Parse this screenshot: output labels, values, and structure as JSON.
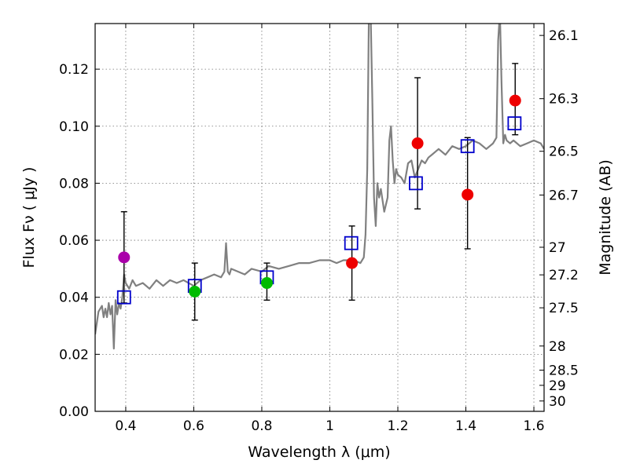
{
  "chart_data": {
    "type": "scatter",
    "xlabel": "Wavelength  λ (μm)",
    "ylabel": "Flux  Fν  ( μJy )",
    "ylabel_right": "Magnitude (AB)",
    "xlim": [
      0.31,
      1.63
    ],
    "ylim": [
      0.0,
      0.136
    ],
    "x_ticks": [
      {
        "value": 0.4,
        "label": "0.4"
      },
      {
        "value": 0.6,
        "label": "0.6"
      },
      {
        "value": 0.8,
        "label": "0.8"
      },
      {
        "value": 1.0,
        "label": "1"
      },
      {
        "value": 1.2,
        "label": "1.2"
      },
      {
        "value": 1.4,
        "label": "1.4"
      },
      {
        "value": 1.6,
        "label": "1.6"
      }
    ],
    "y_ticks": [
      {
        "value": 0.0,
        "label": "0.00"
      },
      {
        "value": 0.02,
        "label": "0.02"
      },
      {
        "value": 0.04,
        "label": "0.04"
      },
      {
        "value": 0.06,
        "label": "0.06"
      },
      {
        "value": 0.08,
        "label": "0.08"
      },
      {
        "value": 0.1,
        "label": "0.10"
      },
      {
        "value": 0.12,
        "label": "0.12"
      }
    ],
    "mag_ticks": [
      {
        "mag": 26.1,
        "label": "26.1"
      },
      {
        "mag": 26.3,
        "label": "26.3"
      },
      {
        "mag": 26.5,
        "label": "26.5"
      },
      {
        "mag": 26.7,
        "label": "26.7"
      },
      {
        "mag": 27.0,
        "label": "27"
      },
      {
        "mag": 27.2,
        "label": "27.2"
      },
      {
        "mag": 27.5,
        "label": "27.5"
      },
      {
        "mag": 28.0,
        "label": "28"
      },
      {
        "mag": 28.5,
        "label": "28.5"
      },
      {
        "mag": 29.0,
        "label": "29"
      },
      {
        "mag": 30.0,
        "label": "30"
      }
    ],
    "grid": true,
    "series": [
      {
        "name": "model spectrum",
        "kind": "line",
        "color": "#808080",
        "x": [
          0.31,
          0.32,
          0.33,
          0.335,
          0.34,
          0.345,
          0.35,
          0.355,
          0.36,
          0.365,
          0.37,
          0.375,
          0.38,
          0.385,
          0.39,
          0.395,
          0.4,
          0.41,
          0.42,
          0.43,
          0.45,
          0.47,
          0.49,
          0.51,
          0.53,
          0.55,
          0.57,
          0.6,
          0.62,
          0.64,
          0.66,
          0.68,
          0.69,
          0.695,
          0.7,
          0.705,
          0.71,
          0.73,
          0.75,
          0.77,
          0.8,
          0.82,
          0.85,
          0.88,
          0.91,
          0.94,
          0.97,
          1.0,
          1.02,
          1.04,
          1.07,
          1.09,
          1.1,
          1.105,
          1.11,
          1.115,
          1.12,
          1.125,
          1.13,
          1.135,
          1.14,
          1.145,
          1.15,
          1.16,
          1.17,
          1.175,
          1.18,
          1.185,
          1.19,
          1.195,
          1.2,
          1.21,
          1.22,
          1.23,
          1.24,
          1.25,
          1.26,
          1.27,
          1.28,
          1.29,
          1.3,
          1.32,
          1.34,
          1.36,
          1.38,
          1.4,
          1.42,
          1.44,
          1.46,
          1.48,
          1.49,
          1.495,
          1.5,
          1.505,
          1.51,
          1.515,
          1.52,
          1.53,
          1.54,
          1.56,
          1.58,
          1.6,
          1.62,
          1.63
        ],
        "y": [
          0.027,
          0.035,
          0.037,
          0.033,
          0.036,
          0.033,
          0.038,
          0.034,
          0.037,
          0.022,
          0.039,
          0.034,
          0.038,
          0.036,
          0.04,
          0.048,
          0.045,
          0.043,
          0.046,
          0.044,
          0.045,
          0.043,
          0.046,
          0.044,
          0.046,
          0.045,
          0.046,
          0.044,
          0.046,
          0.047,
          0.048,
          0.047,
          0.049,
          0.059,
          0.049,
          0.048,
          0.05,
          0.049,
          0.048,
          0.05,
          0.049,
          0.051,
          0.05,
          0.051,
          0.052,
          0.052,
          0.053,
          0.053,
          0.052,
          0.053,
          0.053,
          0.052,
          0.054,
          0.062,
          0.085,
          0.14,
          0.14,
          0.11,
          0.075,
          0.065,
          0.08,
          0.075,
          0.078,
          0.07,
          0.075,
          0.095,
          0.1,
          0.088,
          0.08,
          0.085,
          0.083,
          0.082,
          0.08,
          0.087,
          0.088,
          0.082,
          0.085,
          0.088,
          0.087,
          0.089,
          0.09,
          0.092,
          0.09,
          0.093,
          0.092,
          0.093,
          0.095,
          0.094,
          0.092,
          0.094,
          0.096,
          0.13,
          0.14,
          0.115,
          0.094,
          0.097,
          0.095,
          0.094,
          0.095,
          0.093,
          0.094,
          0.095,
          0.094,
          0.092
        ]
      },
      {
        "name": "model photometry",
        "kind": "open-square",
        "color": "#0000cc",
        "x": [
          0.395,
          0.603,
          0.815,
          1.063,
          1.253,
          1.405,
          1.543
        ],
        "y": [
          0.04,
          0.044,
          0.047,
          0.059,
          0.08,
          0.093,
          0.101
        ]
      },
      {
        "name": "observed purple",
        "kind": "point",
        "color": "#aa00aa",
        "x": [
          0.395
        ],
        "y": [
          0.054
        ],
        "err_lo": [
          0.038
        ],
        "err_hi": [
          0.07
        ]
      },
      {
        "name": "observed green",
        "kind": "point",
        "color": "#00bb00",
        "x": [
          0.603,
          0.815
        ],
        "y": [
          0.042,
          0.045
        ],
        "err_lo": [
          0.032,
          0.039
        ],
        "err_hi": [
          0.052,
          0.052
        ]
      },
      {
        "name": "observed red",
        "kind": "point",
        "color": "#ee0000",
        "x": [
          1.065,
          1.258,
          1.405,
          1.545
        ],
        "y": [
          0.052,
          0.094,
          0.076,
          0.109
        ],
        "err_lo": [
          0.039,
          0.071,
          0.057,
          0.097
        ],
        "err_hi": [
          0.065,
          0.117,
          0.096,
          0.122
        ]
      }
    ]
  }
}
